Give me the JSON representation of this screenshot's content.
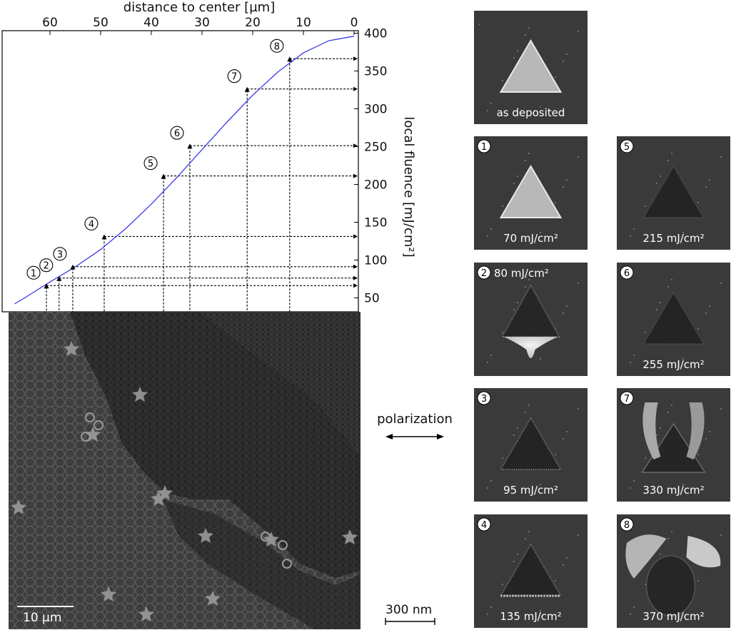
{
  "chart_data": {
    "type": "line",
    "title": "",
    "xlabel": "distance to center  [µm]",
    "ylabel": "local fluence  [mJ/cm²]",
    "x_reversed": true,
    "xlim": [
      0,
      68
    ],
    "ylim": [
      35,
      400
    ],
    "x_ticks": [
      60,
      50,
      40,
      30,
      20,
      10,
      0
    ],
    "y_ticks": [
      50,
      100,
      150,
      200,
      250,
      300,
      350,
      400
    ],
    "y_tick_labels": [
      "50",
      "100",
      "150",
      "200",
      "250",
      "300",
      "350",
      "400"
    ],
    "grid": false,
    "series": [
      {
        "color": "#3a3ae8",
        "x": [
          0,
          5,
          10,
          15,
          20,
          25,
          30,
          35,
          40,
          45,
          50,
          55,
          60,
          65,
          67
        ],
        "y": [
          396,
          390,
          374,
          349,
          318,
          283,
          246,
          209,
          174,
          142,
          114,
          91,
          71,
          50,
          42
        ]
      }
    ],
    "markers": [
      {
        "label": "1",
        "distance": 60.7,
        "fluence": 70
      },
      {
        "label": "2",
        "distance": 58.2,
        "fluence": 80
      },
      {
        "label": "3",
        "distance": 55.5,
        "fluence": 95
      },
      {
        "label": "4",
        "distance": 49.3,
        "fluence": 135
      },
      {
        "label": "5",
        "distance": 37.6,
        "fluence": 215
      },
      {
        "label": "6",
        "distance": 32.4,
        "fluence": 255
      },
      {
        "label": "7",
        "distance": 21.1,
        "fluence": 330
      },
      {
        "label": "8",
        "distance": 12.7,
        "fluence": 370
      }
    ]
  },
  "polarization_label": "polarization",
  "scalebar_large": "10 µm",
  "scalebar_small": "300 nm",
  "panels": [
    {
      "id": "dep",
      "badge": "",
      "caption": "as deposited",
      "state": "intact"
    },
    {
      "id": "p1",
      "badge": "1",
      "caption": "70 mJ/cm²",
      "state": "intact"
    },
    {
      "id": "p2",
      "badge": "2",
      "caption": "80 mJ/cm²",
      "state": "hole-blob"
    },
    {
      "id": "p3",
      "badge": "3",
      "caption": "95 mJ/cm²",
      "state": "hole"
    },
    {
      "id": "p4",
      "badge": "4",
      "caption": "135 mJ/cm²",
      "state": "hole-rim"
    },
    {
      "id": "p5",
      "badge": "5",
      "caption": "215 mJ/cm²",
      "state": "hole-faint"
    },
    {
      "id": "p6",
      "badge": "6",
      "caption": "255 mJ/cm²",
      "state": "hole-faint"
    },
    {
      "id": "p7",
      "badge": "7",
      "caption": "330 mJ/cm²",
      "state": "melt"
    },
    {
      "id": "p8",
      "badge": "8",
      "caption": "370 mJ/cm²",
      "state": "melt-heavy"
    }
  ]
}
